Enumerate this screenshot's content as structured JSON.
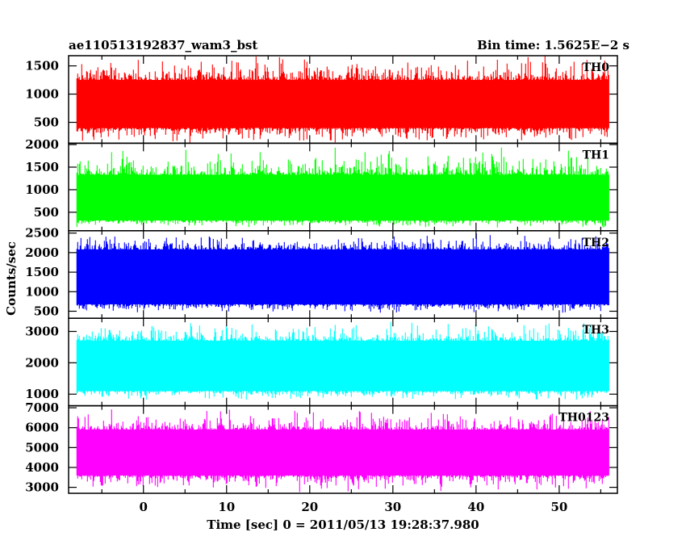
{
  "header": {
    "left_title": "ae110513192837_wam3_bst",
    "right_title": "Bin time: 1.5625E−2 s"
  },
  "chart_data": {
    "type": "line",
    "xlabel": "Time [sec] 0 = 2011/05/13 19:28:37.980",
    "ylabel": "Counts/sec",
    "xlim": [
      -9,
      57
    ],
    "x_ticks": [
      0,
      10,
      20,
      30,
      40,
      50
    ],
    "x_tick_labels": [
      "0",
      "10",
      "20",
      "30",
      "40",
      "50"
    ],
    "data_x_range": [
      -8,
      56
    ],
    "bin_time": 0.015625,
    "grid": false,
    "panels": [
      {
        "name": "TH0",
        "color": "#ff0000",
        "ylim": [
          130,
          1680
        ],
        "yticks": [
          500,
          1000,
          1500
        ],
        "ytick_labels": [
          "500",
          "1000",
          "1500"
        ],
        "band_low": 400,
        "band_high": 1250,
        "spike_low": 110,
        "spike_high": 1700
      },
      {
        "name": "TH1",
        "color": "#00ff00",
        "ylim": [
          90,
          2030
        ],
        "yticks": [
          500,
          1000,
          1500,
          2000
        ],
        "ytick_labels": [
          "500",
          "1000",
          "1500",
          "2000"
        ],
        "band_low": 320,
        "band_high": 1330,
        "spike_low": 150,
        "spike_high": 1950
      },
      {
        "name": "TH2",
        "color": "#0000ff",
        "ylim": [
          320,
          2560
        ],
        "yticks": [
          500,
          1000,
          1500,
          2000,
          2500
        ],
        "ytick_labels": [
          "500",
          "1000",
          "1500",
          "2000",
          "2500"
        ],
        "band_low": 680,
        "band_high": 2080,
        "spike_low": 420,
        "spike_high": 2500
      },
      {
        "name": "TH3",
        "color": "#00ffff",
        "ylim": [
          630,
          3420
        ],
        "yticks": [
          1000,
          2000,
          3000
        ],
        "ytick_labels": [
          "1000",
          "2000",
          "3000"
        ],
        "band_low": 1100,
        "band_high": 2700,
        "spike_low": 800,
        "spike_high": 3350
      },
      {
        "name": "TH0123",
        "color": "#ff00ff",
        "ylim": [
          2700,
          7100
        ],
        "yticks": [
          3000,
          4000,
          5000,
          6000,
          7000
        ],
        "ytick_labels": [
          "3000",
          "4000",
          "5000",
          "6000",
          "7000"
        ],
        "band_low": 3600,
        "band_high": 5900,
        "spike_low": 2750,
        "spike_high": 7000
      }
    ]
  }
}
